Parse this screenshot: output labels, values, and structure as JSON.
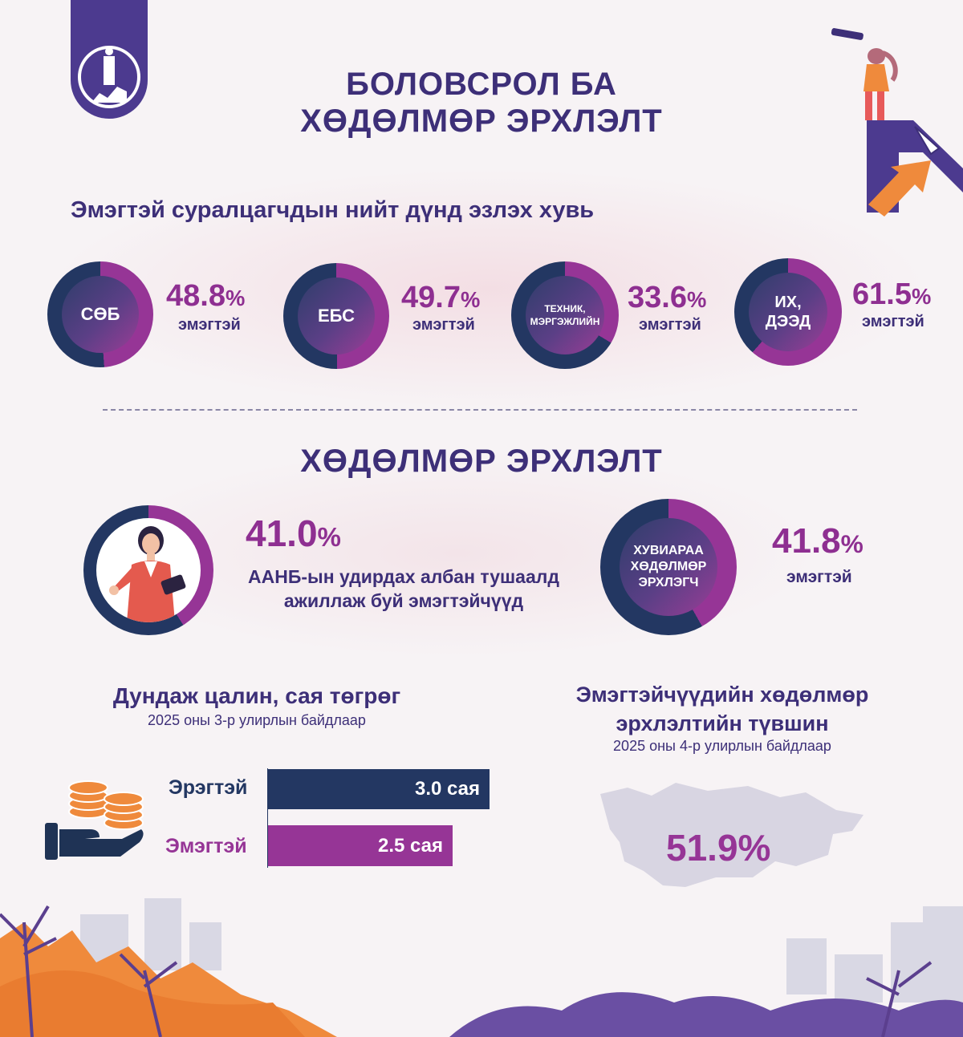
{
  "title_line1": "БОЛОВСРОЛ БА",
  "title_line2": "ХӨДӨЛМӨР ЭРХЛЭЛТ",
  "education": {
    "heading": "Эмэгтэй суралцагчдын нийт дүнд эзлэх хувь",
    "items": [
      {
        "label": "СӨБ",
        "value": "48.8",
        "unit": "%",
        "caption": "эмэгтэй",
        "fraction": 0.488
      },
      {
        "label": "ЕБС",
        "value": "49.7",
        "unit": "%",
        "caption": "эмэгтэй",
        "fraction": 0.497
      },
      {
        "label": "ТЕХНИК, МЭРГЭЖЛИЙН",
        "value": "33.6",
        "unit": "%",
        "caption": "эмэгтэй",
        "fraction": 0.336
      },
      {
        "label": "ИХ, ДЭЭД",
        "value": "61.5",
        "unit": "%",
        "caption": "эмэгтэй",
        "fraction": 0.615
      }
    ]
  },
  "employment": {
    "heading": "ХӨДӨЛМӨР ЭРХЛЭЛТ",
    "managers": {
      "value": "41.0",
      "unit": "%",
      "caption_line1": "ААНБ-ын удирдах албан тушаалд",
      "caption_line2": "ажиллаж буй эмэгтэйчүүд",
      "fraction": 0.41
    },
    "self_employed": {
      "label": "ХУВИАРАА ХӨДӨЛМӨР ЭРХЛЭГЧ",
      "value": "41.8",
      "unit": "%",
      "caption": "эмэгтэй",
      "fraction": 0.418
    }
  },
  "salary": {
    "title": "Дундаж цалин, сая төгрөг",
    "subtitle": "2025 оны 3-р улирлын байдлаар",
    "rows": [
      {
        "label": "Эрэгтэй",
        "value_text": "3.0 сая",
        "value": 3.0,
        "color": "#233762"
      },
      {
        "label": "Эмэгтэй",
        "value_text": "2.5 сая",
        "value": 2.5,
        "color": "#963596"
      }
    ]
  },
  "employment_rate": {
    "title_line1": "Эмэгтэйчүүдийн хөдөлмөр",
    "title_line2": "эрхлэлтийн түвшин",
    "subtitle": "2025 оны 4-р улирлын байдлаар",
    "value": "51.9%"
  },
  "colors": {
    "navy": "#233762",
    "purple": "#963596",
    "dark_purple": "#3d2f78",
    "orange": "#ef8a3c"
  }
}
